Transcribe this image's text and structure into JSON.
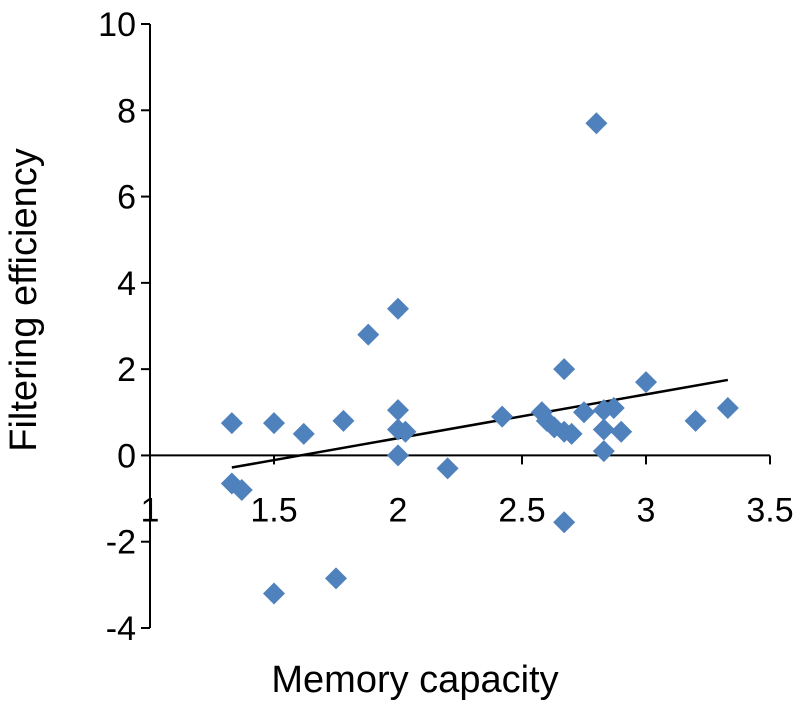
{
  "chart_data": {
    "type": "scatter",
    "title": "",
    "xlabel": "Memory capacity",
    "ylabel": "Filtering efficiency",
    "xlim": [
      1,
      3.5
    ],
    "ylim": [
      -4,
      10
    ],
    "x_ticks": [
      1,
      1.5,
      2,
      2.5,
      3,
      3.5
    ],
    "y_ticks": [
      -4,
      -2,
      0,
      2,
      4,
      6,
      8,
      10
    ],
    "x_tick_labels": [
      "1",
      "1.5",
      "2",
      "2.5",
      "3",
      "3.5"
    ],
    "y_tick_labels": [
      "-4",
      "-2",
      "0",
      "2",
      "4",
      "6",
      "8",
      "10"
    ],
    "marker": "diamond",
    "marker_color": "#4f81bd",
    "grid": false,
    "legend": "none",
    "series": [
      {
        "points": [
          {
            "x": 1.33,
            "y": 0.75
          },
          {
            "x": 1.33,
            "y": -0.65
          },
          {
            "x": 1.37,
            "y": -0.8
          },
          {
            "x": 1.5,
            "y": 0.75
          },
          {
            "x": 1.5,
            "y": -3.2
          },
          {
            "x": 1.62,
            "y": 0.5
          },
          {
            "x": 1.75,
            "y": -2.85
          },
          {
            "x": 1.78,
            "y": 0.8
          },
          {
            "x": 1.88,
            "y": 2.8
          },
          {
            "x": 2.0,
            "y": 3.4
          },
          {
            "x": 2.0,
            "y": 1.05
          },
          {
            "x": 2.0,
            "y": 0.6
          },
          {
            "x": 2.0,
            "y": 0.0
          },
          {
            "x": 2.03,
            "y": 0.55
          },
          {
            "x": 2.2,
            "y": -0.3
          },
          {
            "x": 2.42,
            "y": 0.9
          },
          {
            "x": 2.58,
            "y": 1.0
          },
          {
            "x": 2.6,
            "y": 0.8
          },
          {
            "x": 2.63,
            "y": 0.65
          },
          {
            "x": 2.67,
            "y": 0.55
          },
          {
            "x": 2.67,
            "y": 2.0
          },
          {
            "x": 2.67,
            "y": -1.55
          },
          {
            "x": 2.7,
            "y": 0.5
          },
          {
            "x": 2.75,
            "y": 1.0
          },
          {
            "x": 2.8,
            "y": 7.7
          },
          {
            "x": 2.83,
            "y": 1.05
          },
          {
            "x": 2.83,
            "y": 0.6
          },
          {
            "x": 2.83,
            "y": 0.1
          },
          {
            "x": 2.87,
            "y": 1.1
          },
          {
            "x": 2.9,
            "y": 0.55
          },
          {
            "x": 3.0,
            "y": 1.7
          },
          {
            "x": 3.2,
            "y": 0.8
          },
          {
            "x": 3.33,
            "y": 1.1
          }
        ]
      }
    ],
    "trendline": {
      "type": "linear",
      "x": [
        1.33,
        3.33
      ],
      "y": [
        -0.28,
        1.75
      ]
    }
  }
}
